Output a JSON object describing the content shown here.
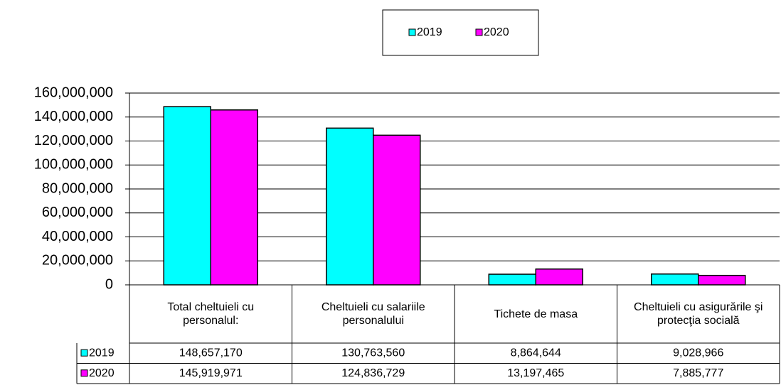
{
  "chart_data": {
    "type": "bar",
    "categories": [
      "Total cheltuieli cu personalul:",
      "Cheltuieli cu salariile personalului",
      "Tichete de masa",
      "Cheltuieli cu asigurările şi protecţia socială"
    ],
    "series": [
      {
        "name": "2019",
        "color": "#00ffff",
        "values": [
          148657170,
          130763560,
          8864644,
          9028966
        ],
        "value_labels": [
          "148,657,170",
          "130,763,560",
          "8,864,644",
          "9,028,966"
        ]
      },
      {
        "name": "2020",
        "color": "#ff00ff",
        "values": [
          145919971,
          124836729,
          13197465,
          7885777
        ],
        "value_labels": [
          "145,919,971",
          "124,836,729",
          "13,197,465",
          "7,885,777"
        ]
      }
    ],
    "ylim": [
      0,
      160000000
    ],
    "yticks": [
      0,
      {
        "value": 20000000,
        "label": "20,000,000"
      },
      {
        "value": 40000000,
        "label": "40,000,000"
      },
      {
        "value": 60000000,
        "label": "60,000,000"
      },
      {
        "value": 80000000,
        "label": "80,000,000"
      },
      {
        "value": 100000000,
        "label": "100,000,000"
      },
      {
        "value": 120000000,
        "label": "120,000,000"
      },
      {
        "value": 140000000,
        "label": "140,000,000"
      },
      {
        "value": 160000000,
        "label": "160,000,000"
      }
    ],
    "grid": true,
    "legend": "top",
    "data_table": true
  }
}
